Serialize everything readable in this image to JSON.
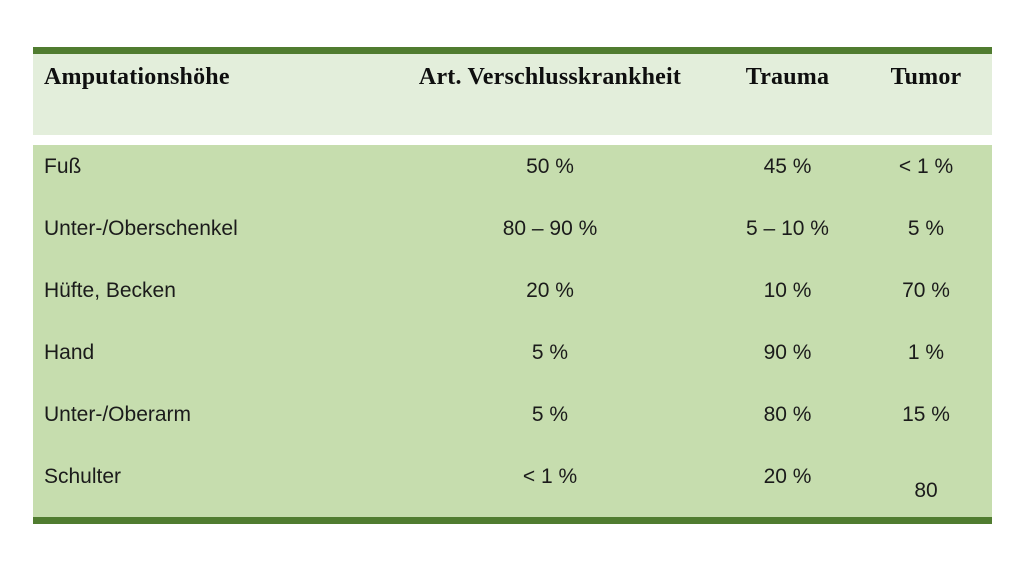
{
  "page": {
    "background_color": "#ffffff"
  },
  "table": {
    "accent_bar_color": "#507c30",
    "header_bg_color": "#e3eedb",
    "body_bg_color": "#c6ddae",
    "text_color": "#1b1b1b",
    "columns": [
      {
        "label": "Amputationshöhe",
        "align": "left"
      },
      {
        "label": "Art. Verschlusskrankheit",
        "align": "center"
      },
      {
        "label": "Trauma",
        "align": "center"
      },
      {
        "label": "Tumor",
        "align": "center"
      }
    ],
    "rows": [
      {
        "cells": [
          "Fuß",
          "50 %",
          "45 %",
          "< 1 %"
        ]
      },
      {
        "cells": [
          "Unter-/Oberschenkel",
          "80 – 90 %",
          "5 – 10 %",
          "5 %"
        ]
      },
      {
        "cells": [
          "Hüfte, Becken",
          "20 %",
          "10 %",
          "70 %"
        ]
      },
      {
        "cells": [
          "Hand",
          "5 %",
          "90 %",
          "1 %"
        ]
      },
      {
        "cells": [
          "Unter-/Oberarm",
          "5 %",
          "80 %",
          "15 %"
        ]
      },
      {
        "cells": [
          "Schulter",
          "< 1 %",
          "20 %",
          "80"
        ]
      }
    ],
    "shifted_cell": {
      "row": 5,
      "col": 3
    }
  }
}
